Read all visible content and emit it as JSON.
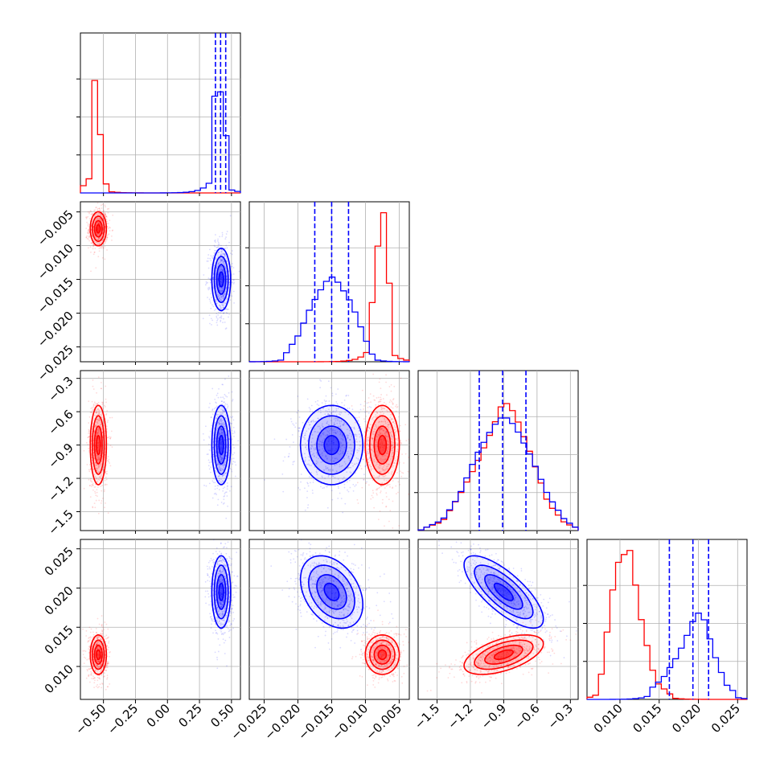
{
  "chart_data": {
    "type": "corner",
    "grid": true,
    "series_colors": {
      "red": "#ff0000",
      "blue": "#0000ff"
    },
    "parameters": [
      {
        "ticks": [
          -0.5,
          -0.25,
          0.0,
          0.25,
          0.5
        ],
        "tick_labels": [
          "−0.50",
          "−0.25",
          "0.00",
          "0.25",
          "0.50"
        ],
        "range": [
          -0.68,
          0.57
        ]
      },
      {
        "ticks": [
          -0.025,
          -0.02,
          -0.015,
          -0.01,
          -0.005
        ],
        "tick_labels": [
          "−0.025",
          "−0.020",
          "−0.015",
          "−0.010",
          "−0.005"
        ],
        "range": [
          -0.0272,
          -0.0035
        ]
      },
      {
        "ticks": [
          -1.5,
          -1.2,
          -0.9,
          -0.6,
          -0.3
        ],
        "tick_labels": [
          "−1.5",
          "−1.2",
          "−0.9",
          "−0.6",
          "−0.3"
        ],
        "range": [
          -1.67,
          -0.23
        ]
      },
      {
        "ticks": [
          0.01,
          0.015,
          0.02,
          0.025
        ],
        "tick_labels": [
          "0.010",
          "0.015",
          "0.020",
          "0.025"
        ],
        "range": [
          0.0058,
          0.0262
        ]
      }
    ],
    "series": [
      {
        "color": "red",
        "means": [
          -0.54,
          -0.0075,
          -0.9,
          0.0115
        ],
        "stds": [
          0.03,
          0.0012,
          0.17,
          0.0012
        ],
        "corr": [
          [
            1,
            0,
            0,
            0
          ],
          [
            0,
            1,
            0,
            0
          ],
          [
            0,
            0,
            1,
            0.55
          ],
          [
            0,
            0,
            0.55,
            1
          ]
        ]
      },
      {
        "color": "blue",
        "means": [
          0.42,
          -0.015,
          -0.9,
          0.0195
        ],
        "stds": [
          0.035,
          0.0022,
          0.17,
          0.0022
        ],
        "corr": [
          [
            1,
            0,
            0,
            0
          ],
          [
            0,
            1,
            0,
            -0.35
          ],
          [
            0,
            0,
            1,
            -0.75
          ],
          [
            0,
            -0.35,
            -0.75,
            1
          ]
        ]
      }
    ],
    "quantile_lines": [
      [
        0.375,
        0.415,
        0.455
      ],
      [
        -0.0175,
        -0.015,
        -0.0125
      ],
      [
        -1.12,
        -0.91,
        -0.7
      ],
      [
        0.0163,
        0.0193,
        0.0213
      ]
    ],
    "histograms": [
      {
        "param": 0,
        "red": [
          [
            -0.58,
            0.38
          ],
          [
            -0.56,
            1.0
          ],
          [
            -0.52,
            0.32
          ],
          [
            -0.48,
            0.06
          ],
          [
            -0.44,
            0.02
          ]
        ],
        "blue": [
          [
            0.34,
            0.2
          ],
          [
            0.38,
            0.8
          ],
          [
            0.43,
            0.6
          ],
          [
            0.5,
            0.05
          ]
        ]
      },
      {
        "param": 1,
        "red": [
          [
            -0.0095,
            0.2
          ],
          [
            -0.0085,
            0.58
          ],
          [
            -0.0077,
            1.0
          ],
          [
            -0.0069,
            0.96
          ],
          [
            -0.0061,
            0.15
          ]
        ],
        "blue": [
          [
            -0.022,
            0.04
          ],
          [
            -0.02,
            0.17
          ],
          [
            -0.018,
            0.37
          ],
          [
            -0.016,
            0.52
          ],
          [
            -0.015,
            0.56
          ],
          [
            -0.014,
            0.52
          ],
          [
            -0.012,
            0.38
          ],
          [
            -0.01,
            0.15
          ],
          [
            -0.009,
            0.05
          ]
        ]
      },
      {
        "param": 2,
        "red": [
          [
            -1.6,
            0.02
          ],
          [
            -1.45,
            0.06
          ],
          [
            -1.3,
            0.23
          ],
          [
            -1.15,
            0.43
          ],
          [
            -1.0,
            0.67
          ],
          [
            -0.9,
            0.86
          ],
          [
            -0.8,
            0.77
          ],
          [
            -0.65,
            0.49
          ],
          [
            -0.5,
            0.18
          ],
          [
            -0.35,
            0.05
          ],
          [
            -0.25,
            0.02
          ]
        ],
        "blue": [
          [
            -1.6,
            0.02
          ],
          [
            -1.45,
            0.07
          ],
          [
            -1.3,
            0.23
          ],
          [
            -1.15,
            0.49
          ],
          [
            -1.0,
            0.68
          ],
          [
            -0.9,
            0.76
          ],
          [
            -0.8,
            0.69
          ],
          [
            -0.65,
            0.48
          ],
          [
            -0.5,
            0.23
          ],
          [
            -0.35,
            0.07
          ],
          [
            -0.25,
            0.02
          ]
        ]
      },
      {
        "param": 3,
        "red": [
          [
            0.0075,
            0.12
          ],
          [
            0.0095,
            0.88
          ],
          [
            0.0112,
            1.0
          ],
          [
            0.0128,
            0.5
          ],
          [
            0.0145,
            0.12
          ],
          [
            0.0165,
            0.03
          ]
        ],
        "blue": [
          [
            0.0135,
            0.05
          ],
          [
            0.0155,
            0.14
          ],
          [
            0.0175,
            0.3
          ],
          [
            0.0188,
            0.45
          ],
          [
            0.0198,
            0.58
          ],
          [
            0.0208,
            0.52
          ],
          [
            0.022,
            0.3
          ],
          [
            0.0235,
            0.1
          ],
          [
            0.025,
            0.03
          ]
        ]
      }
    ]
  }
}
